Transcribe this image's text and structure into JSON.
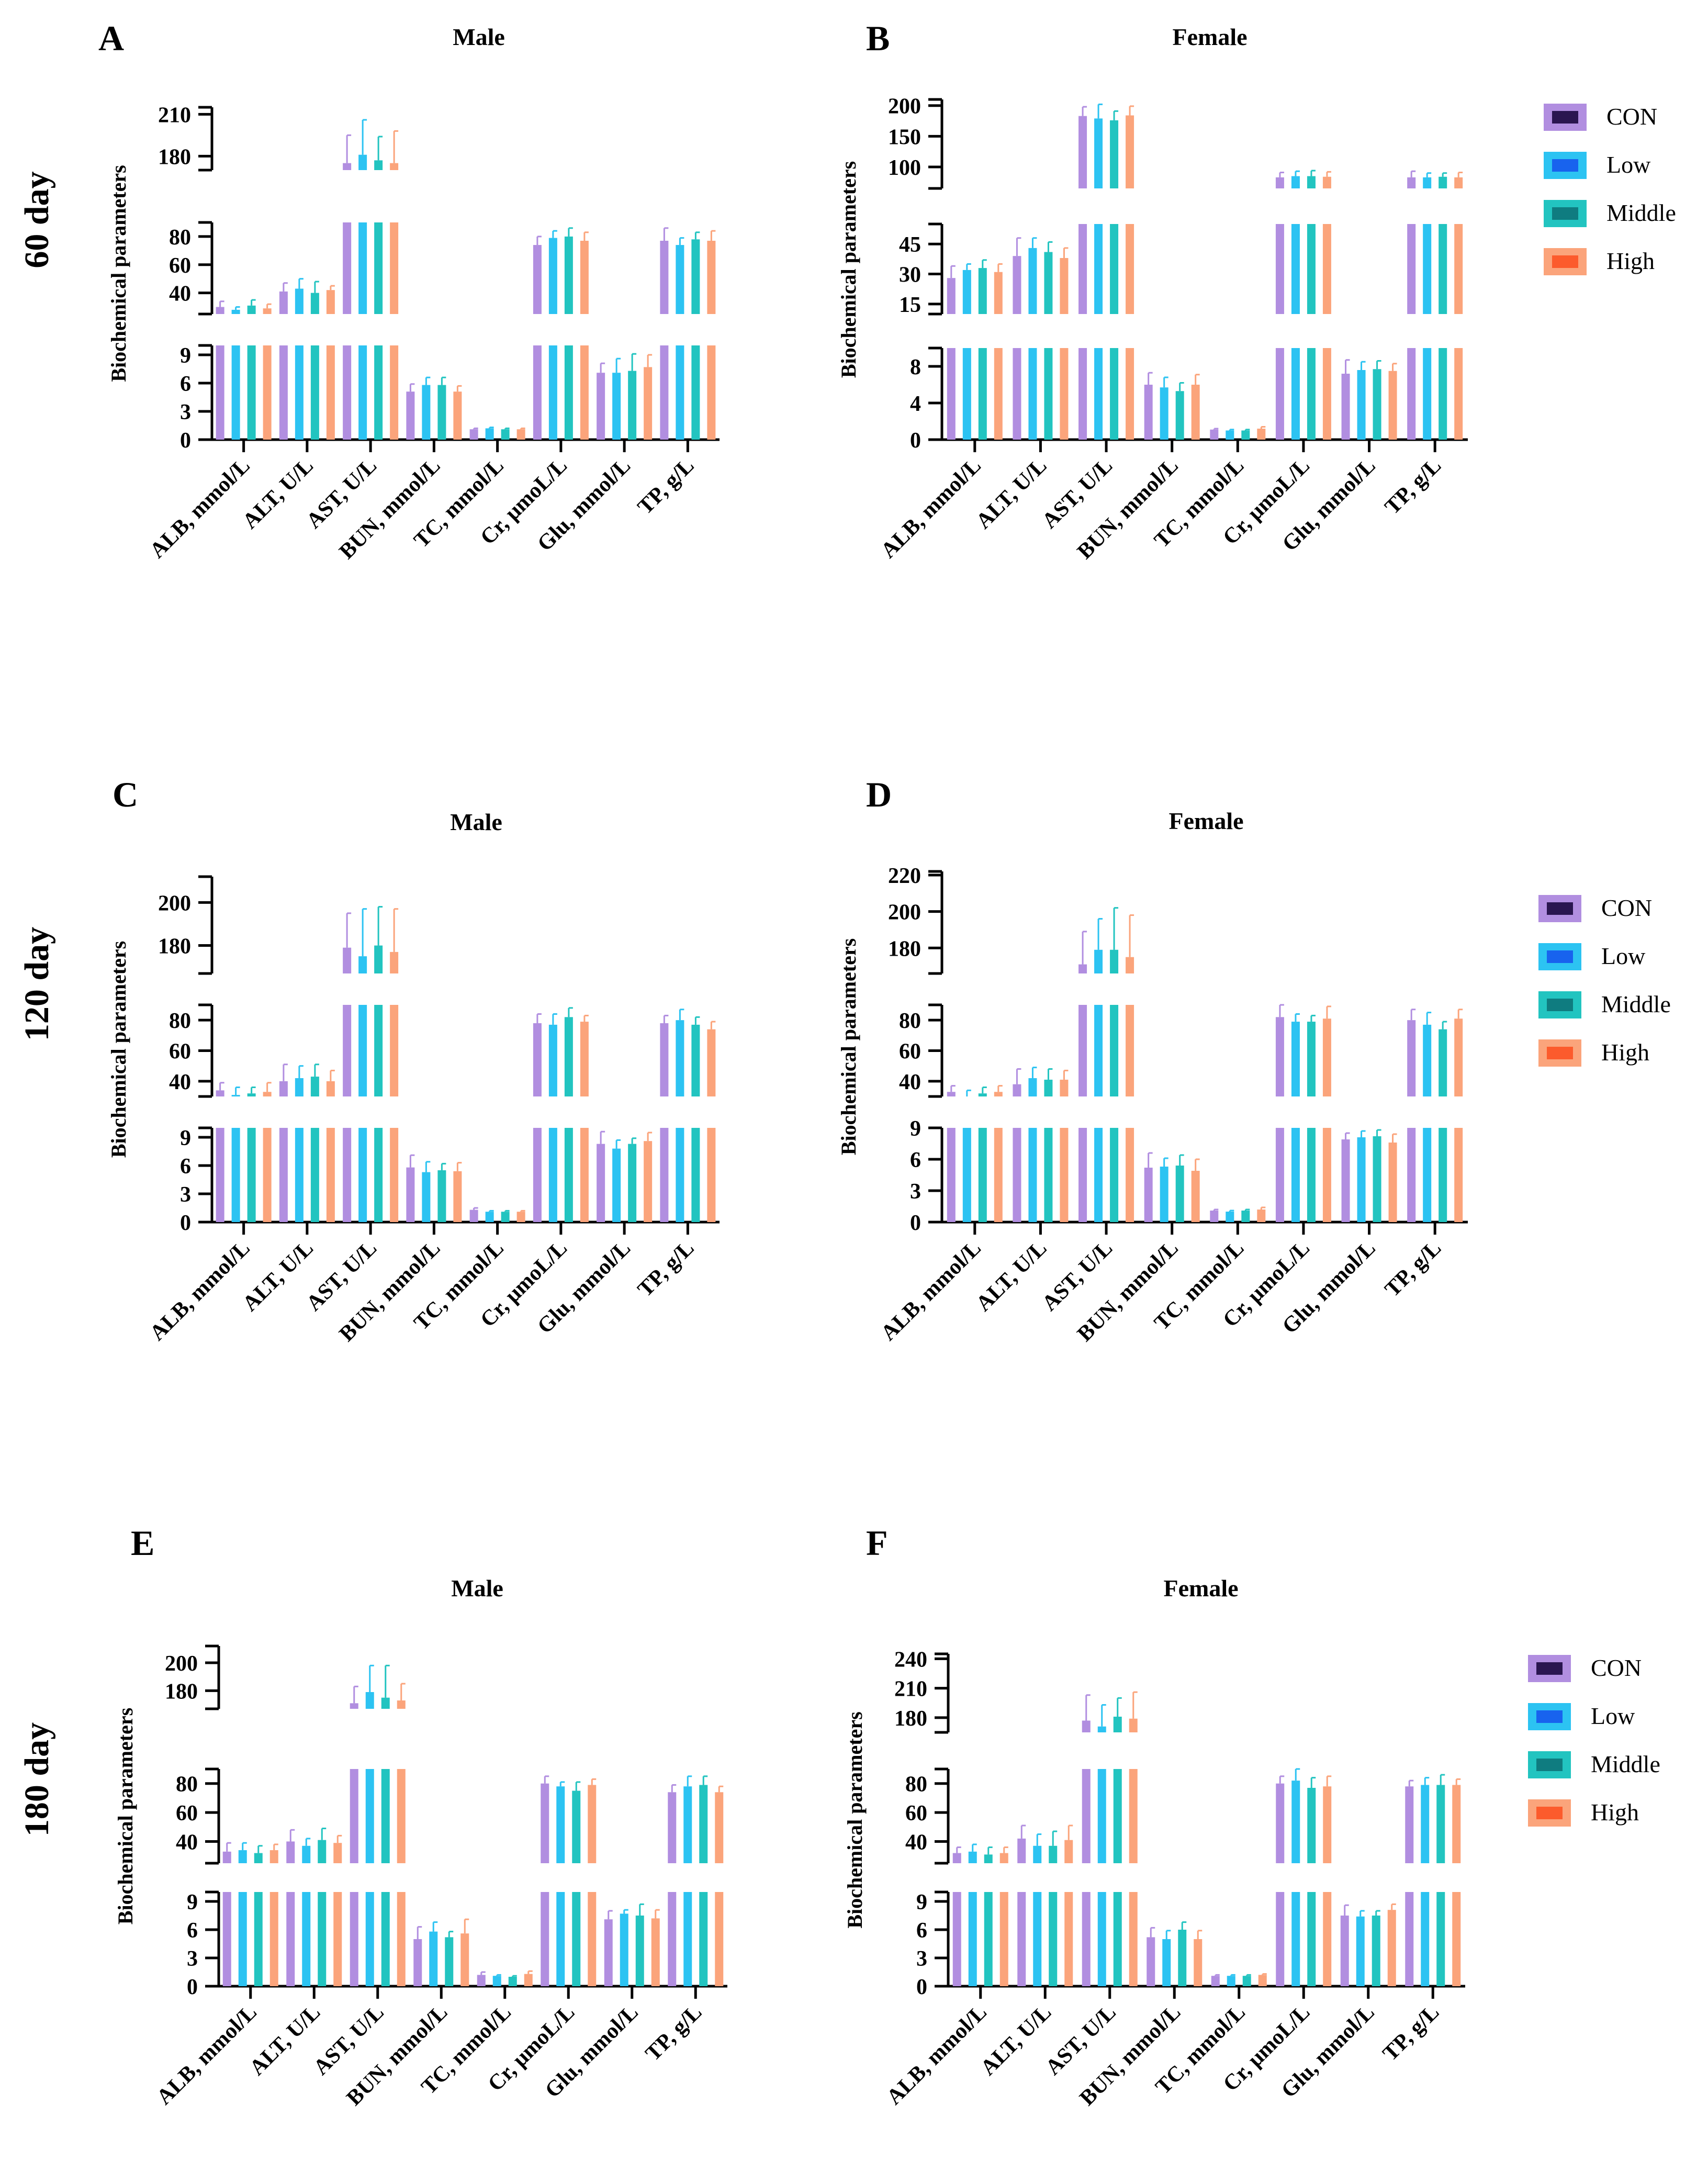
{
  "figure": {
    "row_labels": [
      "60 day",
      "120 day",
      "180 day"
    ],
    "y_axis_label": "Biochemical parameters",
    "categories": [
      "ALB, mmol/L",
      "ALT, U/L",
      "AST, U/L",
      "BUN, mmol/L",
      "TC, mmol/L",
      "Cr, μmoL/L",
      "Glu, mmol/L",
      "TP, g/L"
    ],
    "groups": [
      "CON",
      "Low",
      "Middle",
      "High"
    ],
    "bar_colors": [
      "#b18ee0",
      "#2cc3f2",
      "#22c4c0",
      "#fba47b"
    ],
    "legend_colors": [
      "#2a1650",
      "#1863ee",
      "#0f7c80",
      "#fc5b2c"
    ]
  },
  "chart_data": [
    {
      "panel": "A",
      "title": "Male",
      "type": "bar",
      "legend": false,
      "axis_segments": [
        {
          "range": [
            0,
            10
          ],
          "ticks": [
            0,
            3,
            6,
            9
          ]
        },
        {
          "range": [
            25,
            90
          ],
          "ticks": [
            40,
            60,
            80
          ]
        },
        {
          "range": [
            170,
            215
          ],
          "ticks": [
            180,
            210
          ]
        }
      ],
      "series": [
        {
          "name": "CON",
          "values": [
            30,
            41,
            175,
            5.1,
            1.1,
            74,
            7.1,
            77
          ],
          "errors": [
            4,
            6,
            20,
            0.8,
            0.1,
            6,
            1.0,
            9
          ]
        },
        {
          "name": "Low",
          "values": [
            28,
            43,
            181,
            5.8,
            1.2,
            79,
            7.1,
            74
          ],
          "errors": [
            2,
            7,
            25,
            0.8,
            0.1,
            5,
            1.5,
            5
          ]
        },
        {
          "name": "Middle",
          "values": [
            31,
            40,
            177,
            5.8,
            1.1,
            80,
            7.3,
            78
          ],
          "errors": [
            4,
            8,
            17,
            0.8,
            0.1,
            6,
            1.8,
            5
          ]
        },
        {
          "name": "High",
          "values": [
            29,
            42,
            175,
            5.1,
            1.1,
            77,
            7.7,
            77
          ],
          "errors": [
            3,
            3,
            23,
            0.6,
            0.1,
            6,
            1.3,
            7
          ]
        }
      ]
    },
    {
      "panel": "B",
      "title": "Female",
      "type": "bar",
      "legend": true,
      "axis_segments": [
        {
          "range": [
            0,
            10
          ],
          "ticks": [
            0,
            4,
            8
          ]
        },
        {
          "range": [
            10,
            55
          ],
          "ticks": [
            15,
            30,
            45
          ]
        },
        {
          "range": [
            65,
            210
          ],
          "ticks": [
            100,
            150,
            200
          ]
        }
      ],
      "series": [
        {
          "name": "CON",
          "values": [
            28,
            39,
            183,
            6.0,
            1.1,
            83,
            7.2,
            83
          ],
          "errors": [
            6,
            9,
            15,
            1.3,
            0.1,
            8,
            1.5,
            10
          ]
        },
        {
          "name": "Low",
          "values": [
            32,
            43,
            179,
            5.7,
            1.0,
            85,
            7.6,
            83
          ],
          "errors": [
            3,
            5,
            23,
            1.1,
            0.1,
            8,
            0.9,
            7
          ]
        },
        {
          "name": "Middle",
          "values": [
            33,
            41,
            176,
            5.3,
            1.0,
            85,
            7.7,
            84
          ],
          "errors": [
            4,
            5,
            15,
            0.9,
            0.1,
            9,
            0.9,
            6
          ]
        },
        {
          "name": "High",
          "values": [
            31,
            38,
            184,
            6.0,
            1.2,
            84,
            7.5,
            83
          ],
          "errors": [
            4,
            5,
            15,
            1.1,
            0.2,
            8,
            0.8,
            8
          ]
        }
      ]
    },
    {
      "panel": "C",
      "title": "Male",
      "type": "bar",
      "legend": false,
      "axis_segments": [
        {
          "range": [
            0,
            10
          ],
          "ticks": [
            0,
            3,
            6,
            9
          ]
        },
        {
          "range": [
            30,
            90
          ],
          "ticks": [
            40,
            60,
            80
          ]
        },
        {
          "range": [
            167,
            212
          ],
          "ticks": [
            180,
            200
          ]
        }
      ],
      "series": [
        {
          "name": "CON",
          "values": [
            34,
            40,
            179,
            5.8,
            1.3,
            78,
            8.3,
            78
          ],
          "errors": [
            5,
            11,
            16,
            1.3,
            0.2,
            6,
            1.3,
            5
          ]
        },
        {
          "name": "Low",
          "values": [
            31,
            42,
            175,
            5.3,
            1.1,
            77,
            7.8,
            80
          ],
          "errors": [
            5,
            8,
            22,
            1.1,
            0.1,
            7,
            0.9,
            7
          ]
        },
        {
          "name": "Middle",
          "values": [
            32,
            43,
            180,
            5.5,
            1.1,
            82,
            8.3,
            77
          ],
          "errors": [
            4,
            8,
            18,
            0.7,
            0.1,
            6,
            0.6,
            5
          ]
        },
        {
          "name": "High",
          "values": [
            33,
            40,
            177,
            5.4,
            1.1,
            79,
            8.6,
            74
          ],
          "errors": [
            6,
            7,
            20,
            0.9,
            0.1,
            4,
            0.9,
            5
          ]
        }
      ]
    },
    {
      "panel": "D",
      "title": "Female",
      "type": "bar",
      "legend": true,
      "axis_segments": [
        {
          "range": [
            0,
            9
          ],
          "ticks": [
            0,
            3,
            6,
            9
          ]
        },
        {
          "range": [
            30,
            90
          ],
          "ticks": [
            40,
            60,
            80
          ]
        },
        {
          "range": [
            166,
            222
          ],
          "ticks": [
            180,
            200,
            220
          ]
        }
      ],
      "series": [
        {
          "name": "CON",
          "values": [
            33,
            38,
            171,
            5.2,
            1.1,
            82,
            7.9,
            80
          ],
          "errors": [
            4,
            10,
            18,
            1.4,
            0.1,
            8,
            0.6,
            7
          ]
        },
        {
          "name": "Low",
          "values": [
            30,
            42,
            179,
            5.3,
            1.0,
            79,
            8.1,
            77
          ],
          "errors": [
            4,
            7,
            17,
            0.8,
            0.1,
            5,
            0.6,
            8
          ]
        },
        {
          "name": "Middle",
          "values": [
            32,
            41,
            179,
            5.4,
            1.1,
            79,
            8.2,
            74
          ],
          "errors": [
            4,
            7,
            23,
            1.0,
            0.1,
            4,
            0.6,
            5
          ]
        },
        {
          "name": "High",
          "values": [
            33,
            41,
            175,
            4.9,
            1.2,
            81,
            7.6,
            81
          ],
          "errors": [
            4,
            6,
            23,
            1.1,
            0.2,
            8,
            0.8,
            6
          ]
        }
      ]
    },
    {
      "panel": "E",
      "title": "Male",
      "type": "bar",
      "legend": false,
      "axis_segments": [
        {
          "range": [
            0,
            10
          ],
          "ticks": [
            0,
            3,
            6,
            9
          ]
        },
        {
          "range": [
            25,
            90
          ],
          "ticks": [
            40,
            60,
            80
          ]
        },
        {
          "range": [
            167,
            212
          ],
          "ticks": [
            180,
            200
          ]
        }
      ],
      "series": [
        {
          "name": "CON",
          "values": [
            33,
            40,
            171,
            5.0,
            1.2,
            80,
            7.1,
            74
          ],
          "errors": [
            6,
            8,
            12,
            1.3,
            0.3,
            5,
            0.9,
            5
          ]
        },
        {
          "name": "Low",
          "values": [
            34,
            37,
            179,
            5.8,
            1.1,
            78,
            7.7,
            78
          ],
          "errors": [
            5,
            5,
            19,
            1.0,
            0.1,
            3,
            0.4,
            7
          ]
        },
        {
          "name": "Middle",
          "values": [
            32,
            41,
            175,
            5.2,
            1.0,
            75,
            7.5,
            79
          ],
          "errors": [
            5,
            8,
            23,
            0.6,
            0.1,
            6,
            1.2,
            6
          ]
        },
        {
          "name": "High",
          "values": [
            34,
            39,
            173,
            5.6,
            1.3,
            79,
            7.2,
            74
          ],
          "errors": [
            4,
            5,
            12,
            1.5,
            0.3,
            4,
            0.9,
            4
          ]
        }
      ]
    },
    {
      "panel": "F",
      "title": "Female",
      "type": "bar",
      "legend": true,
      "axis_segments": [
        {
          "range": [
            0,
            10
          ],
          "ticks": [
            0,
            3,
            6,
            9
          ]
        },
        {
          "range": [
            25,
            90
          ],
          "ticks": [
            40,
            60,
            80
          ]
        },
        {
          "range": [
            165,
            245
          ],
          "ticks": [
            180,
            210,
            240
          ]
        }
      ],
      "series": [
        {
          "name": "CON",
          "values": [
            32,
            42,
            177,
            5.2,
            1.1,
            80,
            7.5,
            78
          ],
          "errors": [
            4,
            9,
            26,
            1.0,
            0.1,
            5,
            1.1,
            4
          ]
        },
        {
          "name": "Low",
          "values": [
            33,
            37,
            171,
            5.0,
            1.1,
            82,
            7.4,
            79
          ],
          "errors": [
            5,
            8,
            22,
            0.9,
            0.1,
            8,
            0.6,
            5
          ]
        },
        {
          "name": "Middle",
          "values": [
            31,
            37,
            181,
            6.0,
            1.1,
            77,
            7.5,
            79
          ],
          "errors": [
            5,
            10,
            19,
            0.8,
            0.1,
            7,
            0.5,
            7
          ]
        },
        {
          "name": "High",
          "values": [
            32,
            41,
            179,
            5.0,
            1.2,
            78,
            8.1,
            79
          ],
          "errors": [
            4,
            10,
            27,
            0.9,
            0.1,
            7,
            0.6,
            4
          ]
        }
      ]
    }
  ]
}
